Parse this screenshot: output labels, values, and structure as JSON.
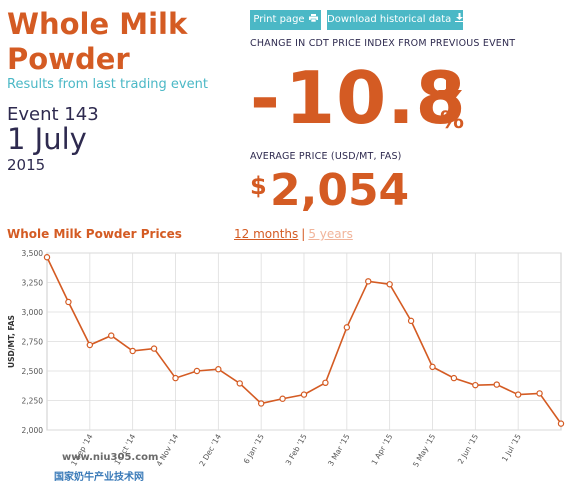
{
  "product": {
    "title": "Whole Milk Powder",
    "subtitle": "Results from last trading event",
    "event_label": "Event 143",
    "event_date": "1 July",
    "event_year": "2015"
  },
  "toolbar": {
    "print_label": "Print page",
    "print_icon": "printer-icon",
    "download_label": "Download historical data",
    "download_icon": "download-icon"
  },
  "change": {
    "heading": "CHANGE IN CDT PRICE INDEX FROM PREVIOUS EVENT",
    "sign": "-",
    "value": "10.8",
    "unit": "%",
    "direction_icon": "down-arrow-icon"
  },
  "average": {
    "heading": "AVERAGE PRICE (USD/MT, FAS)",
    "currency": "$",
    "value": "2,054"
  },
  "chart_header": {
    "title": "Whole Milk Powder Prices",
    "range_12m": "12 months",
    "separator": "|",
    "range_5y": "5 years"
  },
  "watermark": {
    "url": "www.niu305.com",
    "text": "国家奶牛产业技术网"
  },
  "colors": {
    "accent": "#d45b23",
    "teal": "#4bb8c6",
    "navy": "#2e2a4f",
    "grid": "#dddddd"
  },
  "chart_data": {
    "type": "line",
    "ylabel": "USD/MT, FAS",
    "ylim": [
      2000,
      3500
    ],
    "yticks": [
      "3,500",
      "3,250",
      "3,000",
      "2,750",
      "2,500",
      "2,250",
      "2,000"
    ],
    "ytick_values": [
      3500,
      3250,
      3000,
      2750,
      2500,
      2250,
      2000
    ],
    "xticks": [
      "1 Sep '14",
      "1 Oct '14",
      "4 Nov '14",
      "2 Dec '14",
      "6 Jan '15",
      "3 Feb '15",
      "3 Mar '15",
      "1 Apr '15",
      "5 May '15",
      "2 Jun '15",
      "1 Jul '15"
    ],
    "xtick_index": [
      2,
      4,
      6,
      8,
      10,
      12,
      14,
      16,
      18,
      20,
      22
    ],
    "series": [
      {
        "values": [
          3464,
          3085,
          2720,
          2800,
          2670,
          2690,
          2440,
          2500,
          2515,
          2395,
          2225,
          2265,
          2300,
          2400,
          2870,
          3260,
          3235,
          2925,
          2535,
          2440,
          2380,
          2385,
          2300,
          2310,
          2054
        ]
      }
    ],
    "grid": true,
    "legend": "none"
  }
}
